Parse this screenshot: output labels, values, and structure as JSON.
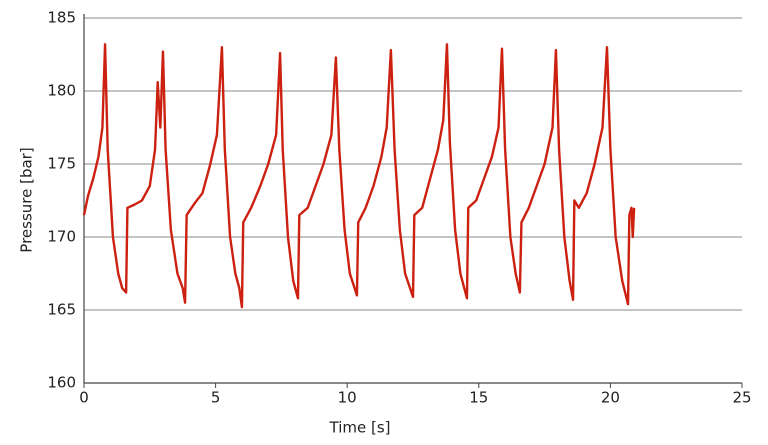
{
  "chart_data": {
    "type": "line",
    "xlabel": "Time [s]",
    "ylabel": "Pressure [bar]",
    "x": [
      0,
      0.15,
      0.35,
      0.55,
      0.7,
      0.8,
      0.9,
      1.1,
      1.3,
      1.45,
      1.6,
      1.65,
      1.9,
      2.2,
      2.5,
      2.7,
      2.8,
      2.9,
      3.0,
      3.1,
      3.3,
      3.55,
      3.75,
      3.84,
      3.9,
      4.2,
      4.5,
      4.8,
      5.05,
      5.24,
      5.35,
      5.55,
      5.75,
      5.9,
      6.0,
      6.05,
      6.35,
      6.7,
      7.0,
      7.3,
      7.45,
      7.55,
      7.75,
      7.95,
      8.13,
      8.18,
      8.5,
      8.8,
      9.1,
      9.4,
      9.57,
      9.7,
      9.9,
      10.1,
      10.37,
      10.42,
      10.7,
      11.0,
      11.3,
      11.5,
      11.66,
      11.8,
      12.0,
      12.2,
      12.5,
      12.55,
      12.85,
      13.15,
      13.45,
      13.65,
      13.79,
      13.9,
      14.1,
      14.3,
      14.55,
      14.6,
      14.9,
      15.2,
      15.5,
      15.75,
      15.88,
      16.0,
      16.2,
      16.4,
      16.56,
      16.62,
      16.9,
      17.2,
      17.5,
      17.8,
      17.93,
      18.05,
      18.25,
      18.45,
      18.58,
      18.63,
      18.8,
      19.1,
      19.4,
      19.7,
      19.87,
      20.0,
      20.2,
      20.45,
      20.67,
      20.72,
      20.8,
      20.85,
      20.9
    ],
    "series": [
      {
        "color": "#cc2010",
        "values": [
          171.5,
          172.8,
          174,
          175.5,
          177.5,
          183.2,
          176,
          170,
          167.5,
          166.5,
          166.2,
          172,
          172.2,
          172.5,
          173.5,
          176,
          180.6,
          177.5,
          182.7,
          176,
          170.5,
          167.5,
          166.5,
          165.5,
          171.5,
          172.3,
          173,
          175,
          177,
          183.0,
          176,
          170,
          167.5,
          166.5,
          165.2,
          171,
          172,
          173.5,
          175,
          177,
          182.6,
          176,
          170,
          167,
          165.8,
          171.5,
          172,
          173.5,
          175,
          177,
          182.3,
          176,
          170.5,
          167.5,
          166,
          171,
          172,
          173.5,
          175.5,
          177.5,
          182.8,
          176,
          170.5,
          167.5,
          165.9,
          171.5,
          172,
          174,
          176,
          178,
          183.2,
          176.5,
          170.5,
          167.5,
          165.8,
          172,
          172.5,
          174,
          175.5,
          177.5,
          182.9,
          176,
          170,
          167.5,
          166.2,
          171,
          172,
          173.5,
          175,
          177.5,
          182.8,
          176,
          170,
          167,
          165.7,
          172.5,
          172,
          173,
          175,
          177.5,
          183.0,
          176,
          170,
          167,
          165.4,
          171.5,
          172,
          170,
          172
        ]
      }
    ],
    "xlim": [
      0,
      25
    ],
    "xticks": [
      0,
      5,
      10,
      15,
      20,
      25
    ],
    "ylim": [
      160,
      185
    ],
    "yticks": [
      160,
      165,
      170,
      175,
      180,
      185
    ],
    "grid": true
  }
}
